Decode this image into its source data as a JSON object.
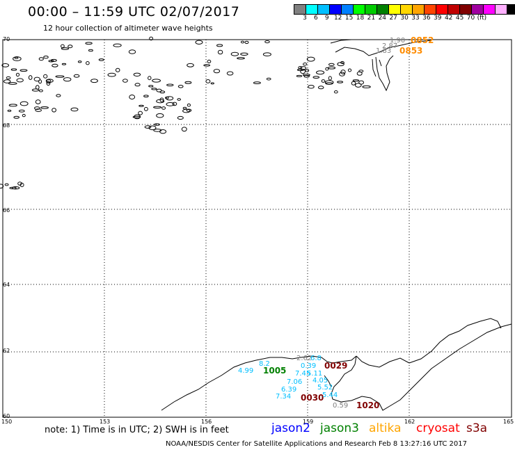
{
  "header": {
    "title": "00:00 – 11:59 UTC 02/07/2017",
    "subtitle": "12 hour collection of altimeter wave heights"
  },
  "colorbar": {
    "colors": [
      "#808080",
      "#00ffff",
      "#00bfff",
      "#0000ff",
      "#0080ff",
      "#00ff00",
      "#00cc00",
      "#008000",
      "#ffff00",
      "#ffd700",
      "#ffa500",
      "#ff4500",
      "#ff0000",
      "#c00000",
      "#800000",
      "#a000a0",
      "#ff00ff",
      "#ffb0ff",
      "#000000"
    ],
    "labels": [
      "3",
      "6",
      "9",
      "12",
      "15",
      "18",
      "21",
      "24",
      "27",
      "30",
      "33",
      "36",
      "39",
      "42",
      "45",
      "70",
      "(ft)"
    ]
  },
  "axes": {
    "lat_labels": [
      "70",
      "68",
      "66",
      "64",
      "62",
      "60"
    ],
    "lon_labels": [
      "150",
      "153",
      "156",
      "159",
      "162",
      "165"
    ]
  },
  "observations": [
    {
      "value": "1.90",
      "color": "#808080"
    },
    {
      "value": "2.87",
      "color": "#808080"
    },
    {
      "value": "1.83",
      "color": "#808080"
    },
    {
      "value": "0852",
      "color": "#ff8c00"
    },
    {
      "value": "0853",
      "color": "#ff8c00"
    },
    {
      "value": "2.62",
      "color": "#808080"
    },
    {
      "value": "6.8",
      "color": "#00bfff"
    },
    {
      "value": "8.2",
      "color": "#00bfff"
    },
    {
      "value": "4.99",
      "color": "#00bfff"
    },
    {
      "value": "1005",
      "color": "#008000"
    },
    {
      "value": "0.39",
      "color": "#00bfff"
    },
    {
      "value": "0029",
      "color": "#800000"
    },
    {
      "value": "7.45",
      "color": "#00bfff"
    },
    {
      "value": "5.11",
      "color": "#00bfff"
    },
    {
      "value": "7.06",
      "color": "#00bfff"
    },
    {
      "value": "4.05",
      "color": "#00bfff"
    },
    {
      "value": "6.39",
      "color": "#00bfff"
    },
    {
      "value": "5.52",
      "color": "#00bfff"
    },
    {
      "value": "7.34",
      "color": "#00bfff"
    },
    {
      "value": "0030",
      "color": "#800000"
    },
    {
      "value": "5.44",
      "color": "#00bfff"
    },
    {
      "value": "0.59",
      "color": "#808080"
    },
    {
      "value": "1020",
      "color": "#800000"
    }
  ],
  "footer": {
    "note": "note:  1) Time is in UTC;  2) SWH is in feet",
    "legend": [
      {
        "label": "jason2",
        "color": "#0000ff"
      },
      {
        "label": "jason3",
        "color": "#008000"
      },
      {
        "label": "altika",
        "color": "#ffa500"
      },
      {
        "label": "cryosat",
        "color": "#ff0000"
      },
      {
        "label": "s3a",
        "color": "#800000"
      }
    ],
    "credit": "NOAA/NESDIS Center for Satellite Applications and Research    Feb  8 13:27:16 UTC 2017"
  }
}
